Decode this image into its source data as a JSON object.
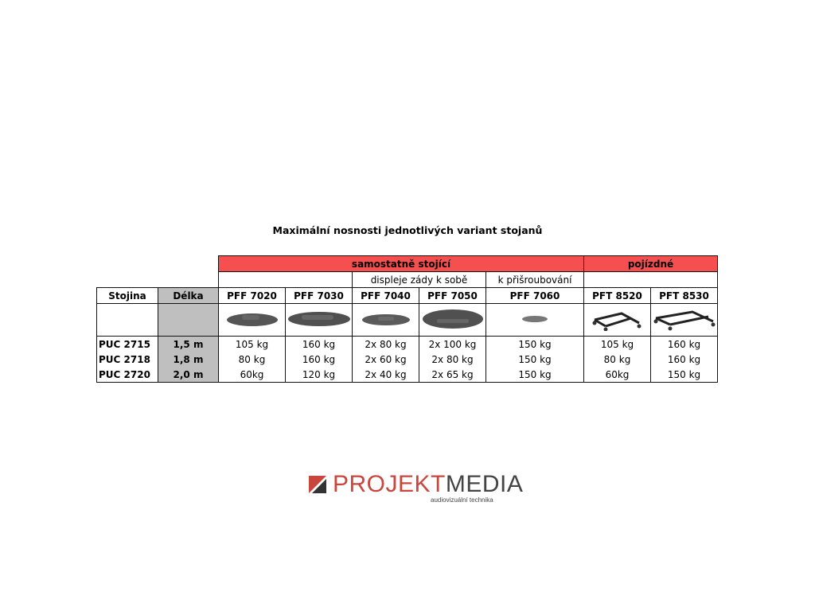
{
  "title": "Maximální nosnosti jednotlivých variant stojanů",
  "table": {
    "group_headers": [
      "samostatně stojící",
      "pojízdné"
    ],
    "sub_headers": [
      "displeje zády k sobě",
      "k přišroubování"
    ],
    "col_headers": [
      "Stojina",
      "Délka",
      "PFF 7020",
      "PFF 7030",
      "PFF 7040",
      "PFF 7050",
      "PFF 7060",
      "PFT 8520",
      "PFT 8530"
    ],
    "rows": [
      [
        "PUC 2715",
        "1,5 m",
        "105 kg",
        "160 kg",
        "2x 80 kg",
        "2x 100 kg",
        "150 kg",
        "105 kg",
        "160 kg"
      ],
      [
        "PUC 2718",
        "1,8 m",
        "80 kg",
        "160 kg",
        "2x 60 kg",
        "2x 80 kg",
        "150 kg",
        "80 kg",
        "160 kg"
      ],
      [
        "PUC 2720",
        "2,0 m",
        "60kg",
        "120 kg",
        "2x 40 kg",
        "2x 65 kg",
        "150 kg",
        "60kg",
        "150 kg"
      ]
    ],
    "accent_color": "#f5504f",
    "gray_color": "#bfbfbf"
  },
  "logo": {
    "part1": "PROJEKT",
    "part2": "MEDIA",
    "tagline": "audiovizuální technika",
    "color1": "#c9463d",
    "color2": "#444444"
  }
}
